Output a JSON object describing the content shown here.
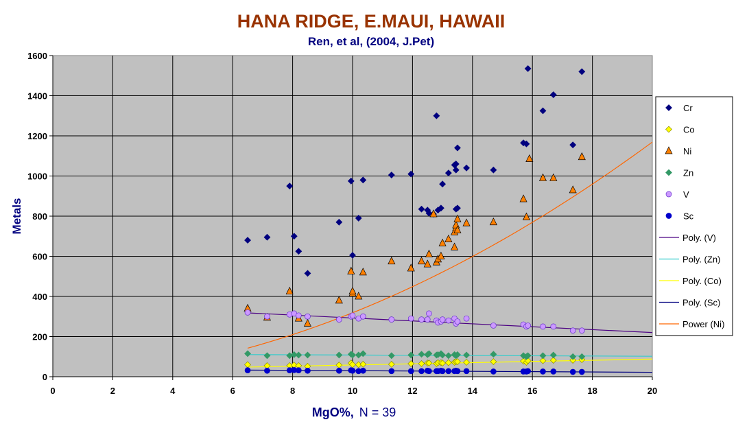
{
  "chart_data": {
    "type": "scatter",
    "title": "HANA RIDGE, E.MAUI, HAWAII",
    "subtitle": "Ren, et al, (2004, J.Pet)",
    "xlabel": "MgO%,",
    "xlabel_note": "N = 39",
    "ylabel": "Metals",
    "xlim": [
      0,
      20
    ],
    "ylim": [
      0,
      1600
    ],
    "x_ticks": [
      0,
      2,
      4,
      6,
      8,
      10,
      12,
      14,
      16,
      18,
      20
    ],
    "y_ticks": [
      0,
      200,
      400,
      600,
      800,
      1000,
      1200,
      1400,
      1600
    ],
    "grid": true,
    "plot_background": "#c0c0c0",
    "legend_position": "right",
    "series": [
      {
        "name": "Cr",
        "marker": "diamond",
        "color": "#00007f",
        "x": [
          6.5,
          7.15,
          7.9,
          8.05,
          8.2,
          8.5,
          9.55,
          9.95,
          10.0,
          10.2,
          10.35,
          11.3,
          11.95,
          12.3,
          12.5,
          12.55,
          12.8,
          12.85,
          12.95,
          13.0,
          13.2,
          13.4,
          13.45,
          13.45,
          13.5,
          13.5,
          13.8,
          14.7,
          15.7,
          15.8,
          15.85,
          16.35,
          16.7,
          17.35,
          17.65,
          13.45,
          12.7
        ],
        "y": [
          680,
          695,
          950,
          700,
          625,
          515,
          770,
          975,
          605,
          790,
          980,
          1005,
          1010,
          835,
          830,
          815,
          1300,
          830,
          840,
          960,
          1015,
          1055,
          1060,
          1030,
          1140,
          840,
          1040,
          1030,
          1165,
          1160,
          1535,
          1325,
          1405,
          1155,
          1520,
          835,
          810
        ]
      },
      {
        "name": "Co",
        "marker": "diamond",
        "color": "#ffff00",
        "x": [
          6.5,
          7.15,
          7.9,
          8.05,
          8.2,
          8.5,
          9.55,
          9.95,
          10.0,
          10.2,
          10.35,
          11.3,
          11.95,
          12.3,
          12.5,
          12.55,
          12.8,
          12.85,
          12.95,
          13.0,
          13.2,
          13.4,
          13.45,
          13.5,
          13.8,
          14.7,
          15.7,
          15.8,
          15.85,
          16.35,
          16.7,
          17.35,
          17.65
        ],
        "y": [
          60,
          55,
          55,
          58,
          55,
          52,
          58,
          68,
          60,
          60,
          62,
          62,
          65,
          65,
          68,
          68,
          65,
          70,
          70,
          68,
          70,
          72,
          75,
          75,
          72,
          75,
          78,
          72,
          80,
          80,
          82,
          82,
          85
        ]
      },
      {
        "name": "Ni",
        "marker": "triangle",
        "color": "#ff8000",
        "x": [
          6.5,
          7.15,
          7.9,
          8.2,
          8.5,
          9.55,
          9.95,
          10.0,
          10.2,
          10.35,
          11.3,
          11.95,
          12.3,
          12.5,
          12.55,
          12.8,
          12.85,
          12.95,
          13.0,
          13.2,
          13.4,
          13.45,
          13.45,
          13.5,
          13.5,
          13.8,
          14.7,
          15.7,
          15.8,
          15.9,
          16.35,
          16.7,
          17.35,
          17.65,
          12.7,
          13.4,
          10.0
        ],
        "y": [
          340,
          295,
          425,
          290,
          265,
          380,
          525,
          415,
          400,
          520,
          575,
          540,
          575,
          560,
          610,
          570,
          585,
          600,
          665,
          685,
          720,
          740,
          755,
          730,
          785,
          765,
          770,
          885,
          795,
          1085,
          990,
          990,
          930,
          1095,
          810,
          645,
          425
        ]
      },
      {
        "name": "Zn",
        "marker": "diamond",
        "color": "#339966",
        "x": [
          6.5,
          7.15,
          7.9,
          8.05,
          8.2,
          8.5,
          9.55,
          9.95,
          10.0,
          10.2,
          10.35,
          11.3,
          11.95,
          12.3,
          12.5,
          12.55,
          12.8,
          12.85,
          12.95,
          13.0,
          13.2,
          13.4,
          13.45,
          13.5,
          13.8,
          14.7,
          15.7,
          15.8,
          15.85,
          16.35,
          16.7,
          17.35,
          17.65
        ],
        "y": [
          115,
          105,
          105,
          110,
          108,
          108,
          108,
          112,
          108,
          108,
          115,
          105,
          108,
          112,
          110,
          115,
          108,
          110,
          115,
          108,
          105,
          110,
          105,
          110,
          108,
          112,
          105,
          100,
          105,
          105,
          108,
          100,
          100
        ]
      },
      {
        "name": "V",
        "marker": "circle",
        "color": "#cc99ff",
        "x": [
          6.5,
          7.15,
          7.9,
          8.05,
          8.2,
          8.5,
          9.55,
          9.95,
          10.0,
          10.2,
          10.35,
          11.3,
          11.95,
          12.3,
          12.5,
          12.55,
          12.8,
          12.85,
          12.95,
          13.0,
          13.2,
          13.4,
          13.45,
          13.5,
          13.8,
          14.7,
          15.7,
          15.8,
          15.85,
          16.35,
          16.7,
          17.35,
          17.65
        ],
        "y": [
          320,
          300,
          310,
          315,
          305,
          300,
          285,
          300,
          305,
          290,
          300,
          285,
          290,
          285,
          285,
          315,
          280,
          270,
          275,
          285,
          280,
          290,
          265,
          275,
          290,
          255,
          260,
          250,
          255,
          250,
          250,
          230,
          230
        ]
      },
      {
        "name": "Sc",
        "marker": "circle",
        "color": "#0000cc",
        "x": [
          6.5,
          7.15,
          7.9,
          8.05,
          8.2,
          8.5,
          9.55,
          9.95,
          10.0,
          10.2,
          10.35,
          11.3,
          11.95,
          12.3,
          12.5,
          12.55,
          12.8,
          12.85,
          12.95,
          13.0,
          13.2,
          13.4,
          13.45,
          13.5,
          13.8,
          14.7,
          15.7,
          15.8,
          15.85,
          16.35,
          16.7,
          17.35,
          17.65
        ],
        "y": [
          32,
          30,
          32,
          33,
          32,
          30,
          30,
          32,
          30,
          28,
          30,
          28,
          28,
          28,
          30,
          28,
          28,
          28,
          30,
          28,
          28,
          28,
          30,
          28,
          28,
          26,
          26,
          26,
          28,
          26,
          26,
          24,
          24
        ]
      }
    ],
    "trendlines": [
      {
        "name": "Poly. (V)",
        "type": "poly",
        "color": "#4b0082",
        "x": [
          6.5,
          20
        ],
        "y": [
          318,
          220
        ]
      },
      {
        "name": "Poly. (Zn)",
        "type": "poly",
        "color": "#33cccc",
        "x": [
          6.5,
          20
        ],
        "y": [
          110,
          102
        ]
      },
      {
        "name": "Poly. (Co)",
        "type": "poly",
        "color": "#ffff00",
        "x": [
          6.5,
          20
        ],
        "y": [
          48,
          88
        ]
      },
      {
        "name": "Poly. (Sc)",
        "type": "poly",
        "color": "#00007f",
        "x": [
          6.5,
          20
        ],
        "y": [
          33,
          22
        ]
      },
      {
        "name": "Power (Ni)",
        "type": "power",
        "color": "#ff6600",
        "a": 4.25,
        "b": 1.875,
        "xlim": [
          6.5,
          20
        ]
      }
    ]
  }
}
